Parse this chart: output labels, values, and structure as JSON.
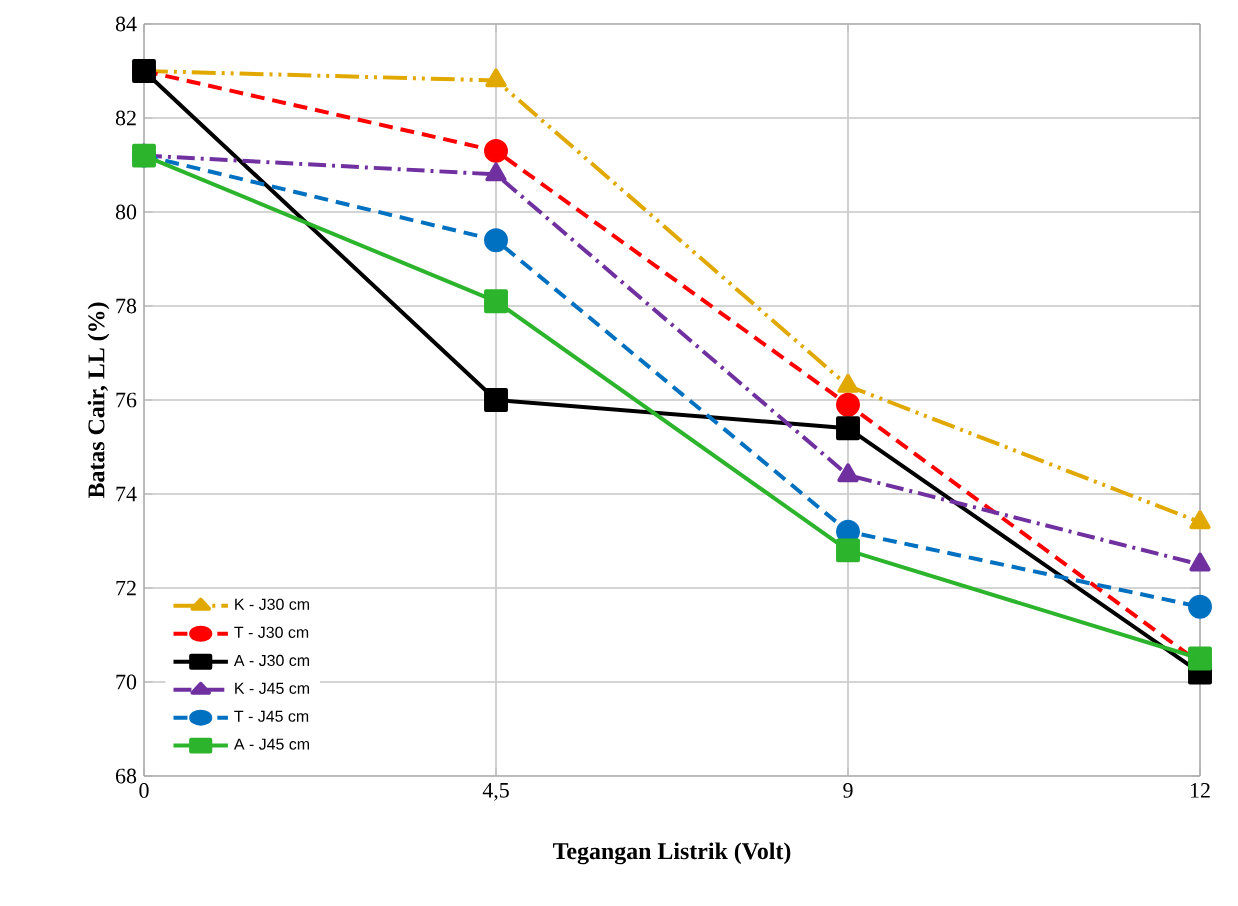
{
  "chart_data": {
    "type": "line",
    "xlabel": "Tegangan Listrik (Volt)",
    "ylabel": "Batas Cair, LL (%)",
    "categories": [
      "0",
      "4,5",
      "9",
      "12"
    ],
    "ylim": [
      68,
      84
    ],
    "yticks": [
      68,
      70,
      72,
      74,
      76,
      78,
      80,
      82,
      84
    ],
    "grid": true,
    "legend": "bottom left",
    "series": [
      {
        "name": "K - J30 cm",
        "color": "#e1a800",
        "marker": "triangle",
        "line_style": "dashdotdot",
        "values": [
          83.0,
          82.8,
          76.3,
          73.4
        ]
      },
      {
        "name": "T - J30 cm",
        "color": "#ff0000",
        "marker": "circle",
        "line_style": "dashed",
        "values": [
          83.0,
          81.3,
          75.9,
          70.4
        ]
      },
      {
        "name": "A - J30 cm",
        "color": "#000000",
        "marker": "square",
        "line_style": "solid",
        "values": [
          83.0,
          76.0,
          75.4,
          70.2
        ]
      },
      {
        "name": "K - J45 cm",
        "color": "#7030a0",
        "marker": "triangle",
        "line_style": "dashdot",
        "values": [
          81.2,
          80.8,
          74.4,
          72.5
        ]
      },
      {
        "name": "T - J45 cm",
        "color": "#0070c0",
        "marker": "circle",
        "line_style": "dashed",
        "values": [
          81.2,
          79.4,
          73.2,
          71.6
        ]
      },
      {
        "name": "A - J45 cm",
        "color": "#2db42d",
        "marker": "square",
        "line_style": "solid",
        "values": [
          81.2,
          78.1,
          72.8,
          70.5
        ]
      }
    ]
  }
}
